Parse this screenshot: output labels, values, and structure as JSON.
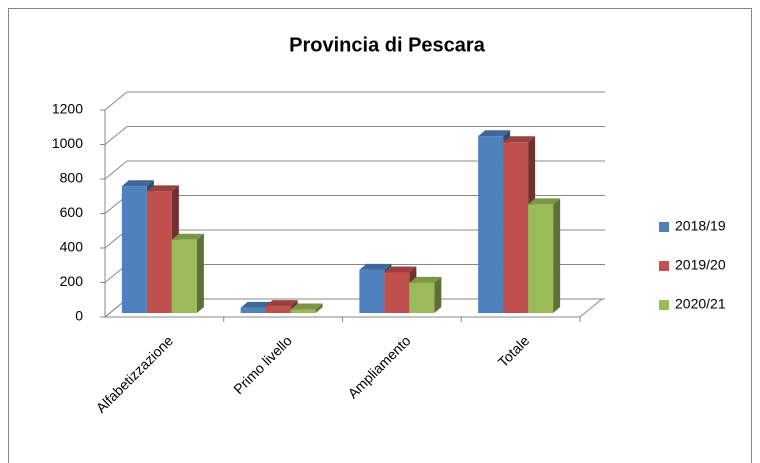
{
  "chart_data": {
    "type": "bar3d",
    "title": "Provincia di Pescara",
    "categories": [
      "Alfabetizzazione",
      "Primo livello",
      "Ampliamento",
      "Totale"
    ],
    "series": [
      {
        "name": "2018/19",
        "color": "#4f81bd",
        "values": [
          735,
          30,
          250,
          1025
        ]
      },
      {
        "name": "2019/20",
        "color": "#c0504d",
        "values": [
          705,
          40,
          235,
          990
        ]
      },
      {
        "name": "2020/21",
        "color": "#9bbb59",
        "values": [
          425,
          20,
          175,
          630
        ]
      }
    ],
    "ylim": [
      0,
      1200
    ],
    "yticks": [
      0,
      200,
      400,
      600,
      800,
      1000,
      1200
    ],
    "grid": true,
    "legend": "right"
  }
}
